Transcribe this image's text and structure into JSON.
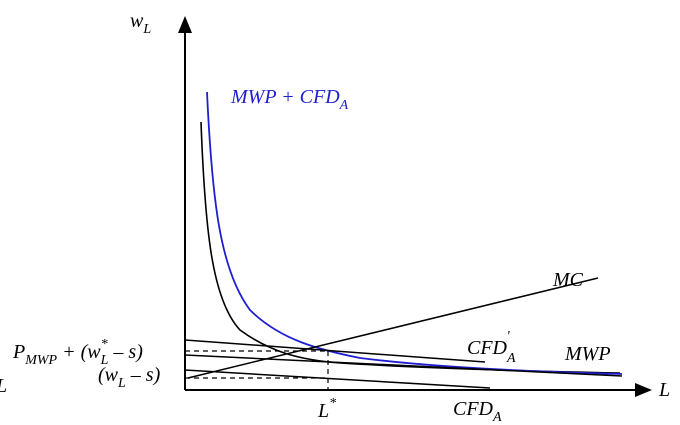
{
  "axes": {
    "y_label": "w",
    "y_label_sub": "L",
    "x_label": "L"
  },
  "curves": {
    "mwp_plus_cfd": {
      "main": "MWP + CFD",
      "sub": "A",
      "color": "#1f1fd1"
    },
    "mc": "MC",
    "mwp": "MWP",
    "cfd_prime": {
      "main": "CFD",
      "sub": "A",
      "sup": "'"
    },
    "cfd": {
      "main": "CFD",
      "sub": "A"
    }
  },
  "marks": {
    "lstar": {
      "main": "L",
      "sup": "*"
    }
  },
  "y_ticks": {
    "upper": {
      "p": "P",
      "p_sub": "MWP",
      "rest_a": " + (w",
      "w_sup": "*",
      "w_sub": "L",
      "rest_b": " – s)"
    },
    "lower": {
      "open": "(w",
      "w_sub": "L",
      "rest": " – s)"
    }
  },
  "edge_char": "L",
  "colors": {
    "axis": "#000000",
    "curve_black": "#000000",
    "curve_blue": "#1f1fd1"
  }
}
